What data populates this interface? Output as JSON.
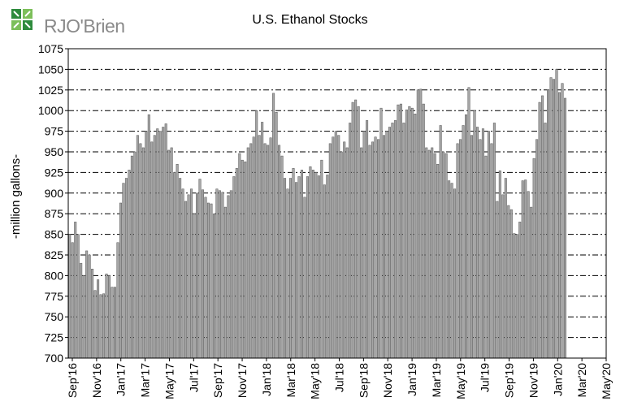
{
  "brand": {
    "name": "RJO'Brien",
    "accent": "#2e8b3d"
  },
  "chart_data": {
    "type": "bar",
    "title": "U.S. Ethanol Stocks",
    "xlabel": "",
    "ylabel": "-million gallons-",
    "ylim": [
      700,
      1075
    ],
    "yticks": [
      700,
      725,
      750,
      775,
      800,
      825,
      850,
      875,
      900,
      925,
      950,
      975,
      1000,
      1025,
      1050,
      1075
    ],
    "grid": true,
    "bar_color": "#a6a6a6",
    "x_tick_labels": [
      "Sep'16",
      "Nov'16",
      "Jan'17",
      "Mar'17",
      "May'17",
      "Jul'17",
      "Sep'17",
      "Nov'17",
      "Jan'18",
      "Mar'18",
      "May'18",
      "Jul'18",
      "Sep'18",
      "Nov'18",
      "Jan'19",
      "Mar'19",
      "May'19",
      "Jul'19",
      "Sep'19",
      "Nov'19",
      "Jan'20",
      "Mar'20",
      "May'20"
    ],
    "values": [
      850,
      840,
      865,
      850,
      815,
      800,
      830,
      825,
      808,
      782,
      795,
      777,
      778,
      802,
      800,
      786,
      786,
      840,
      888,
      912,
      918,
      928,
      945,
      950,
      970,
      960,
      955,
      975,
      995,
      962,
      970,
      978,
      975,
      980,
      984,
      952,
      955,
      925,
      935,
      918,
      905,
      890,
      898,
      905,
      875,
      900,
      917,
      904,
      895,
      888,
      887,
      875,
      905,
      903,
      901,
      883,
      897,
      903,
      920,
      930,
      948,
      940,
      938,
      955,
      960,
      968,
      1000,
      970,
      986,
      960,
      958,
      967,
      1021,
      998,
      958,
      945,
      918,
      905,
      918,
      930,
      913,
      920,
      928,
      895,
      920,
      932,
      928,
      925,
      921,
      940,
      910,
      922,
      960,
      968,
      975,
      970,
      950,
      962,
      955,
      985,
      1010,
      1013,
      1005,
      955,
      975,
      988,
      958,
      962,
      968,
      965,
      1003,
      970,
      975,
      980,
      985,
      988,
      1007,
      1008,
      985,
      1001,
      1005,
      1003,
      996,
      1025,
      1026,
      1008,
      955,
      952,
      955,
      948,
      935,
      982,
      950,
      948,
      915,
      912,
      905,
      960,
      965,
      982,
      995,
      1028,
      970,
      1000,
      980,
      965,
      978,
      945,
      975,
      960,
      985,
      890,
      927,
      898,
      918,
      885,
      880,
      851,
      850,
      865,
      915,
      916,
      902,
      883,
      942,
      965,
      1010,
      1018,
      985,
      1025,
      1040,
      1038,
      1050,
      1022,
      1033,
      1015
    ]
  }
}
